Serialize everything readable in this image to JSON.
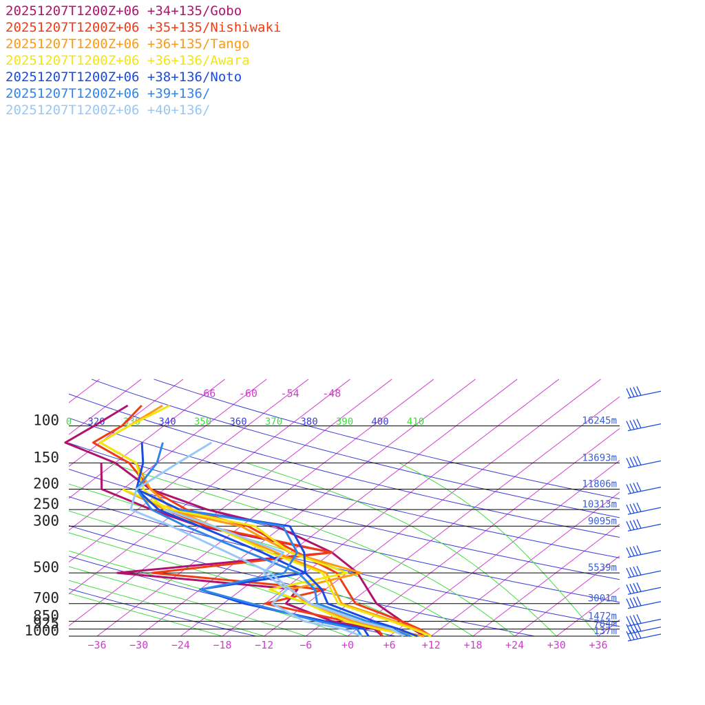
{
  "chart_data": {
    "type": "line",
    "subtype": "skew-T log-P sounding",
    "title": "",
    "xlabel": "",
    "ylabel": "",
    "pressure_levels": [
      100,
      150,
      200,
      250,
      300,
      500,
      700,
      850,
      925,
      1000
    ],
    "pressure_labels": [
      "100",
      "150",
      "200",
      "250",
      "300",
      "500",
      "700",
      "850",
      "925",
      "1000"
    ],
    "height_labels": [
      {
        "p": 100,
        "label": "16245m"
      },
      {
        "p": 150,
        "label": "13693m"
      },
      {
        "p": 200,
        "label": "11806m"
      },
      {
        "p": 250,
        "label": "10313m"
      },
      {
        "p": 300,
        "label": "9095m"
      },
      {
        "p": 500,
        "label": "5539m"
      },
      {
        "p": 700,
        "label": "3001m"
      },
      {
        "p": 850,
        "label": "1472m"
      },
      {
        "p": 925,
        "label": "784m"
      },
      {
        "p": 1000,
        "label": "137m"
      }
    ],
    "temperature_ticks": [
      -36,
      -30,
      -24,
      -18,
      -12,
      -6,
      0,
      6,
      12,
      18,
      24,
      30,
      36
    ],
    "temperature_tick_labels": [
      "−36",
      "−30",
      "−24",
      "−18",
      "−12",
      "−6",
      "+0",
      "+6",
      "+12",
      "+18",
      "+24",
      "+30",
      "+36"
    ],
    "upper_temperature_labels": [
      "-66",
      "-60",
      "-54",
      "-48"
    ],
    "theta_labels": [
      "0",
      "320",
      "330",
      "340",
      "350",
      "360",
      "370",
      "380",
      "390",
      "400",
      "410"
    ],
    "grid": true,
    "legend_position": "top-left",
    "x_range_at_1000hPa": [
      -40,
      40
    ],
    "p_range": [
      60,
      1000
    ],
    "colors": {
      "isotherm": "#d040d0",
      "dry_adiabat": "#3b3bd9",
      "moist_adiabat": "#3fdc3f",
      "isobar": "#000000",
      "height_text": "#3a5fd0"
    },
    "series": [
      {
        "name": "20251207T1200Z+06 +34+135/Gobo",
        "color": "#b0126e",
        "T": [
          [
            1000,
            11
          ],
          [
            925,
            8
          ],
          [
            850,
            5
          ],
          [
            700,
            -2
          ],
          [
            500,
            -10.5
          ],
          [
            400,
            -18
          ],
          [
            300,
            -31
          ],
          [
            250,
            -44
          ],
          [
            200,
            -56
          ],
          [
            150,
            -66
          ],
          [
            120,
            -77
          ],
          [
            100,
            -76
          ],
          [
            80,
            -75
          ]
        ],
        "Td": [
          [
            1000,
            5
          ],
          [
            925,
            2.5
          ],
          [
            850,
            -5
          ],
          [
            700,
            -15
          ],
          [
            600,
            -16
          ],
          [
            500,
            -45
          ],
          [
            400,
            -18
          ],
          [
            300,
            -42
          ],
          [
            250,
            -52
          ],
          [
            200,
            -63
          ],
          [
            150,
            -68
          ]
        ]
      },
      {
        "name": "20251207T1200Z+06 +35+135/Nishiwaki",
        "color": "#f03c14",
        "T": [
          [
            1000,
            12
          ],
          [
            925,
            9
          ],
          [
            850,
            5
          ],
          [
            700,
            -5
          ],
          [
            500,
            -13.5
          ],
          [
            400,
            -23
          ],
          [
            300,
            -35
          ],
          [
            250,
            -47
          ],
          [
            200,
            -56
          ],
          [
            150,
            -64
          ],
          [
            120,
            -73
          ],
          [
            100,
            -72
          ],
          [
            80,
            -73
          ]
        ],
        "Td": [
          [
            1000,
            5
          ],
          [
            925,
            3
          ],
          [
            850,
            -3
          ],
          [
            700,
            -18
          ],
          [
            600,
            -12
          ],
          [
            500,
            -40
          ],
          [
            400,
            -18
          ],
          [
            300,
            -41
          ],
          [
            250,
            -50
          ],
          [
            200,
            -60
          ]
        ]
      },
      {
        "name": "20251207T1200Z+06 +36+135/Tango",
        "color": "#ff9a10",
        "T": [
          [
            1000,
            12
          ],
          [
            925,
            8.5
          ],
          [
            850,
            4
          ],
          [
            700,
            -7
          ],
          [
            500,
            -15
          ],
          [
            400,
            -26
          ],
          [
            300,
            -40
          ],
          [
            250,
            -49
          ],
          [
            200,
            -56
          ],
          [
            150,
            -63
          ],
          [
            120,
            -72
          ],
          [
            100,
            -71
          ],
          [
            80,
            -70
          ]
        ],
        "Td": [
          [
            1000,
            11
          ],
          [
            925,
            4
          ],
          [
            850,
            -2
          ],
          [
            700,
            -12
          ],
          [
            600,
            -17
          ],
          [
            500,
            -10
          ],
          [
            400,
            -24
          ],
          [
            300,
            -36
          ],
          [
            250,
            -50
          ],
          [
            200,
            -60
          ]
        ]
      },
      {
        "name": "20251207T1200Z+06 +36+136/Awara",
        "color": "#f2e610",
        "T": [
          [
            1000,
            12
          ],
          [
            925,
            8
          ],
          [
            850,
            3.5
          ],
          [
            700,
            -7.5
          ],
          [
            500,
            -15.5
          ],
          [
            400,
            -27
          ],
          [
            300,
            -40
          ],
          [
            250,
            -50
          ],
          [
            200,
            -57
          ],
          [
            150,
            -63
          ],
          [
            120,
            -72
          ],
          [
            100,
            -71
          ],
          [
            80,
            -69
          ]
        ],
        "Td": [
          [
            1000,
            10
          ],
          [
            925,
            3
          ],
          [
            850,
            -3
          ],
          [
            700,
            -12
          ],
          [
            600,
            -20
          ],
          [
            500,
            -12
          ],
          [
            400,
            -24
          ],
          [
            300,
            -34
          ],
          [
            250,
            -49
          ],
          [
            200,
            -60
          ]
        ]
      },
      {
        "name": "20251207T1200Z+06 +38+136/Noto",
        "color": "#1a4be0",
        "T": [
          [
            1000,
            10
          ],
          [
            925,
            6
          ],
          [
            850,
            1
          ],
          [
            700,
            -9
          ],
          [
            600,
            -12.5
          ],
          [
            500,
            -18
          ],
          [
            400,
            -28
          ],
          [
            300,
            -42
          ],
          [
            250,
            -51
          ],
          [
            200,
            -58
          ],
          [
            150,
            -62
          ],
          [
            120,
            -66
          ]
        ],
        "Td": [
          [
            1000,
            3
          ],
          [
            925,
            1
          ],
          [
            850,
            -6
          ],
          [
            700,
            -21
          ],
          [
            600,
            -30
          ],
          [
            500,
            -18
          ],
          [
            400,
            -22
          ],
          [
            300,
            -29
          ],
          [
            250,
            -48
          ],
          [
            200,
            -58
          ]
        ]
      },
      {
        "name": "20251207T1200Z+06 +39+136/",
        "color": "#2f86ea",
        "T": [
          [
            1000,
            9
          ],
          [
            925,
            5
          ],
          [
            850,
            0
          ],
          [
            700,
            -10.5
          ],
          [
            600,
            -13.5
          ],
          [
            500,
            -19
          ],
          [
            400,
            -30
          ],
          [
            300,
            -44
          ],
          [
            250,
            -52
          ],
          [
            200,
            -58
          ],
          [
            150,
            -60
          ],
          [
            120,
            -63
          ]
        ],
        "Td": [
          [
            1000,
            2
          ],
          [
            925,
            0
          ],
          [
            850,
            -7
          ],
          [
            700,
            -20
          ],
          [
            600,
            -30
          ],
          [
            500,
            -21
          ],
          [
            400,
            -23
          ],
          [
            300,
            -30
          ],
          [
            250,
            -48
          ]
        ]
      },
      {
        "name": "20251207T1200Z+06 +40+136/",
        "color": "#99c8f6",
        "T": [
          [
            1000,
            8
          ],
          [
            925,
            5
          ],
          [
            850,
            -1
          ],
          [
            700,
            -11.5
          ],
          [
            600,
            -17
          ],
          [
            500,
            -23
          ],
          [
            400,
            -33
          ],
          [
            300,
            -46
          ],
          [
            250,
            -55
          ],
          [
            200,
            -58
          ],
          [
            150,
            -57
          ],
          [
            120,
            -56
          ]
        ],
        "Td": [
          [
            1000,
            2
          ],
          [
            925,
            -2
          ],
          [
            850,
            -9
          ],
          [
            700,
            -17
          ],
          [
            600,
            -17.5
          ],
          [
            500,
            -24
          ],
          [
            400,
            -25
          ],
          [
            300,
            -40
          ],
          [
            250,
            -50
          ]
        ]
      }
    ],
    "wind_barb_levels": [
      70,
      100,
      150,
      200,
      250,
      300,
      400,
      500,
      600,
      700,
      850,
      925,
      1000
    ]
  }
}
